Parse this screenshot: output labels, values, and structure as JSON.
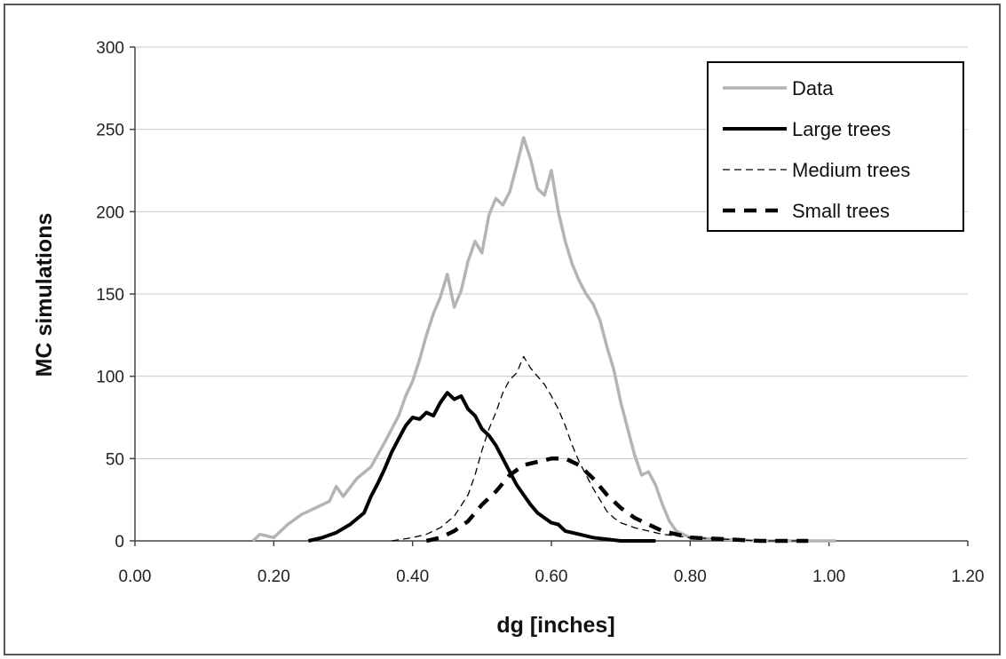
{
  "chart_data": {
    "type": "line",
    "xlabel": "dg [inches]",
    "ylabel": "MC simulations",
    "xlim": [
      0,
      1.2
    ],
    "ylim": [
      0,
      300
    ],
    "x_ticks": [
      "0.00",
      "0.20",
      "0.40",
      "0.60",
      "0.80",
      "1.00",
      "1.20"
    ],
    "y_ticks": [
      "0",
      "50",
      "100",
      "150",
      "200",
      "250",
      "300"
    ],
    "grid": "horizontal",
    "legend_position": "top-right",
    "series": [
      {
        "name": "Data",
        "color": "#b4b4b4",
        "style": "solid-thick",
        "points": [
          [
            0.17,
            0
          ],
          [
            0.18,
            4
          ],
          [
            0.2,
            2
          ],
          [
            0.22,
            10
          ],
          [
            0.24,
            16
          ],
          [
            0.26,
            20
          ],
          [
            0.28,
            24
          ],
          [
            0.29,
            33
          ],
          [
            0.3,
            27
          ],
          [
            0.32,
            38
          ],
          [
            0.34,
            45
          ],
          [
            0.36,
            60
          ],
          [
            0.38,
            76
          ],
          [
            0.39,
            88
          ],
          [
            0.4,
            97
          ],
          [
            0.41,
            110
          ],
          [
            0.42,
            125
          ],
          [
            0.43,
            138
          ],
          [
            0.44,
            148
          ],
          [
            0.45,
            162
          ],
          [
            0.46,
            142
          ],
          [
            0.47,
            152
          ],
          [
            0.48,
            170
          ],
          [
            0.49,
            182
          ],
          [
            0.5,
            175
          ],
          [
            0.51,
            198
          ],
          [
            0.52,
            208
          ],
          [
            0.53,
            204
          ],
          [
            0.54,
            212
          ],
          [
            0.55,
            228
          ],
          [
            0.56,
            245
          ],
          [
            0.57,
            232
          ],
          [
            0.58,
            214
          ],
          [
            0.59,
            210
          ],
          [
            0.6,
            225
          ],
          [
            0.61,
            200
          ],
          [
            0.62,
            182
          ],
          [
            0.63,
            168
          ],
          [
            0.64,
            158
          ],
          [
            0.65,
            150
          ],
          [
            0.66,
            144
          ],
          [
            0.67,
            134
          ],
          [
            0.68,
            118
          ],
          [
            0.69,
            104
          ],
          [
            0.7,
            84
          ],
          [
            0.71,
            68
          ],
          [
            0.72,
            52
          ],
          [
            0.73,
            40
          ],
          [
            0.74,
            42
          ],
          [
            0.75,
            34
          ],
          [
            0.76,
            22
          ],
          [
            0.77,
            12
          ],
          [
            0.78,
            6
          ],
          [
            0.8,
            2
          ],
          [
            0.84,
            1
          ],
          [
            0.9,
            0
          ],
          [
            1.01,
            0
          ]
        ]
      },
      {
        "name": "Large trees",
        "color": "#000000",
        "style": "solid-thick",
        "points": [
          [
            0.25,
            0
          ],
          [
            0.27,
            2
          ],
          [
            0.29,
            5
          ],
          [
            0.31,
            10
          ],
          [
            0.33,
            17
          ],
          [
            0.34,
            27
          ],
          [
            0.35,
            35
          ],
          [
            0.36,
            44
          ],
          [
            0.37,
            54
          ],
          [
            0.38,
            62
          ],
          [
            0.39,
            70
          ],
          [
            0.4,
            75
          ],
          [
            0.41,
            74
          ],
          [
            0.42,
            78
          ],
          [
            0.43,
            76
          ],
          [
            0.44,
            84
          ],
          [
            0.45,
            90
          ],
          [
            0.46,
            86
          ],
          [
            0.47,
            88
          ],
          [
            0.48,
            80
          ],
          [
            0.49,
            76
          ],
          [
            0.5,
            68
          ],
          [
            0.51,
            64
          ],
          [
            0.52,
            58
          ],
          [
            0.53,
            50
          ],
          [
            0.54,
            42
          ],
          [
            0.55,
            34
          ],
          [
            0.56,
            28
          ],
          [
            0.57,
            22
          ],
          [
            0.58,
            17
          ],
          [
            0.59,
            14
          ],
          [
            0.6,
            11
          ],
          [
            0.61,
            10
          ],
          [
            0.62,
            6
          ],
          [
            0.64,
            4
          ],
          [
            0.66,
            2
          ],
          [
            0.7,
            0
          ],
          [
            0.75,
            0
          ]
        ]
      },
      {
        "name": "Medium trees",
        "color": "#000000",
        "style": "dash-thin",
        "points": [
          [
            0.37,
            0
          ],
          [
            0.4,
            2
          ],
          [
            0.42,
            4
          ],
          [
            0.44,
            8
          ],
          [
            0.46,
            15
          ],
          [
            0.48,
            28
          ],
          [
            0.49,
            40
          ],
          [
            0.5,
            55
          ],
          [
            0.51,
            68
          ],
          [
            0.52,
            78
          ],
          [
            0.53,
            90
          ],
          [
            0.54,
            98
          ],
          [
            0.55,
            102
          ],
          [
            0.56,
            112
          ],
          [
            0.57,
            105
          ],
          [
            0.58,
            100
          ],
          [
            0.59,
            95
          ],
          [
            0.6,
            88
          ],
          [
            0.61,
            80
          ],
          [
            0.62,
            70
          ],
          [
            0.63,
            58
          ],
          [
            0.64,
            48
          ],
          [
            0.65,
            40
          ],
          [
            0.66,
            32
          ],
          [
            0.67,
            25
          ],
          [
            0.68,
            18
          ],
          [
            0.69,
            14
          ],
          [
            0.7,
            11
          ],
          [
            0.72,
            8
          ],
          [
            0.74,
            6
          ],
          [
            0.76,
            4
          ],
          [
            0.78,
            3
          ],
          [
            0.8,
            2
          ],
          [
            0.85,
            1
          ],
          [
            0.9,
            0
          ],
          [
            0.97,
            0
          ]
        ]
      },
      {
        "name": "Small trees",
        "color": "#000000",
        "style": "dash-thick",
        "points": [
          [
            0.42,
            0
          ],
          [
            0.44,
            2
          ],
          [
            0.46,
            6
          ],
          [
            0.48,
            12
          ],
          [
            0.5,
            22
          ],
          [
            0.52,
            30
          ],
          [
            0.54,
            40
          ],
          [
            0.56,
            46
          ],
          [
            0.58,
            48
          ],
          [
            0.6,
            50
          ],
          [
            0.62,
            50
          ],
          [
            0.64,
            46
          ],
          [
            0.66,
            38
          ],
          [
            0.68,
            28
          ],
          [
            0.7,
            20
          ],
          [
            0.72,
            14
          ],
          [
            0.74,
            10
          ],
          [
            0.76,
            6
          ],
          [
            0.78,
            4
          ],
          [
            0.8,
            2
          ],
          [
            0.85,
            1
          ],
          [
            0.9,
            0
          ],
          [
            0.97,
            0
          ]
        ]
      }
    ]
  }
}
